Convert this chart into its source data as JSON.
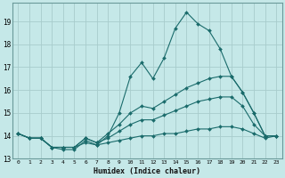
{
  "xlabel": "Humidex (Indice chaleur)",
  "ylabel": "",
  "bg_color": "#c5e8e8",
  "grid_color": "#a8cccc",
  "line_color": "#1a6b6b",
  "xlim": [
    -0.5,
    23.5
  ],
  "ylim": [
    13,
    19.8
  ],
  "yticks": [
    13,
    14,
    15,
    16,
    17,
    18,
    19
  ],
  "xticks": [
    0,
    1,
    2,
    3,
    4,
    5,
    6,
    7,
    8,
    9,
    10,
    11,
    12,
    13,
    14,
    15,
    16,
    17,
    18,
    19,
    20,
    21,
    22,
    23
  ],
  "line1_x": [
    0,
    1,
    2,
    3,
    4,
    5,
    6,
    7,
    8,
    9,
    10,
    11,
    12,
    13,
    14,
    15,
    16,
    17,
    18,
    19,
    20,
    21,
    22,
    23
  ],
  "line1_y": [
    14.1,
    13.9,
    13.9,
    13.5,
    13.4,
    13.4,
    13.8,
    13.6,
    14.0,
    15.0,
    16.6,
    17.2,
    16.5,
    17.4,
    18.7,
    19.4,
    18.9,
    18.6,
    17.8,
    16.6,
    15.9,
    15.0,
    14.0,
    14.0
  ],
  "line2_x": [
    0,
    1,
    2,
    3,
    4,
    5,
    6,
    7,
    8,
    9,
    10,
    11,
    12,
    13,
    14,
    15,
    16,
    17,
    18,
    19,
    20,
    21,
    22,
    23
  ],
  "line2_y": [
    14.1,
    13.9,
    13.9,
    13.5,
    13.5,
    13.5,
    13.9,
    13.7,
    14.1,
    14.5,
    15.0,
    15.3,
    15.2,
    15.5,
    15.8,
    16.1,
    16.3,
    16.5,
    16.6,
    16.6,
    15.9,
    15.0,
    14.0,
    14.0
  ],
  "line3_x": [
    0,
    1,
    2,
    3,
    4,
    5,
    6,
    7,
    8,
    9,
    10,
    11,
    12,
    13,
    14,
    15,
    16,
    17,
    18,
    19,
    20,
    21,
    22,
    23
  ],
  "line3_y": [
    14.1,
    13.9,
    13.9,
    13.5,
    13.5,
    13.5,
    13.9,
    13.7,
    13.9,
    14.2,
    14.5,
    14.7,
    14.7,
    14.9,
    15.1,
    15.3,
    15.5,
    15.6,
    15.7,
    15.7,
    15.3,
    14.5,
    14.0,
    14.0
  ],
  "line4_x": [
    0,
    1,
    2,
    3,
    4,
    5,
    6,
    7,
    8,
    9,
    10,
    11,
    12,
    13,
    14,
    15,
    16,
    17,
    18,
    19,
    20,
    21,
    22,
    23
  ],
  "line4_y": [
    14.1,
    13.9,
    13.9,
    13.5,
    13.5,
    13.5,
    13.7,
    13.6,
    13.7,
    13.8,
    13.9,
    14.0,
    14.0,
    14.1,
    14.1,
    14.2,
    14.3,
    14.3,
    14.4,
    14.4,
    14.3,
    14.1,
    13.9,
    14.0
  ]
}
